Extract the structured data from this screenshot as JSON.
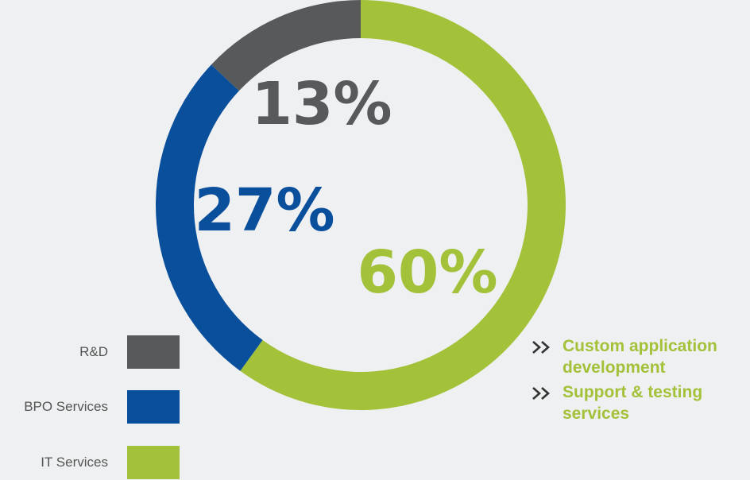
{
  "chart_data": {
    "type": "pie",
    "title": "",
    "categories": [
      "R&D",
      "BPO Services",
      "IT Services"
    ],
    "values": [
      13,
      27,
      60
    ],
    "labels": [
      "13%",
      "27%",
      "60%"
    ],
    "colors": [
      "#58595b",
      "#0a4f9c",
      "#a3c139"
    ],
    "legend_placement": "bottom-left",
    "legend": [
      {
        "label": "R&D",
        "color": "#58595b"
      },
      {
        "label": "BPO Services",
        "color": "#0a4f9c"
      },
      {
        "label": "IT Services",
        "color": "#a3c139"
      }
    ]
  },
  "notes": {
    "icon": "double-chevron-right-icon",
    "color": "#a3c139",
    "items": [
      {
        "text": "Custom application development"
      },
      {
        "text": "Support & testing services"
      }
    ]
  }
}
